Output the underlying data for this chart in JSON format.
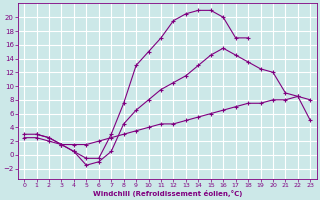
{
  "xlabel": "Windchill (Refroidissement éolien,°C)",
  "bg_color": "#cce8e8",
  "grid_color": "#ffffff",
  "line_color": "#800080",
  "xlim": [
    -0.5,
    23.5
  ],
  "ylim": [
    -3.5,
    22
  ],
  "xticks": [
    0,
    1,
    2,
    3,
    4,
    5,
    6,
    7,
    8,
    9,
    10,
    11,
    12,
    13,
    14,
    15,
    16,
    17,
    18,
    19,
    20,
    21,
    22,
    23
  ],
  "yticks": [
    -2,
    0,
    2,
    4,
    6,
    8,
    10,
    12,
    14,
    16,
    18,
    20
  ],
  "line1_x": [
    1,
    2,
    3,
    4,
    5,
    6,
    7,
    8,
    9,
    10,
    11,
    12,
    13,
    14,
    15,
    16,
    17,
    18
  ],
  "line1_y": [
    3,
    2.5,
    1.5,
    0.5,
    -0.5,
    -0.5,
    3.0,
    7.5,
    13.0,
    15.0,
    17.0,
    19.5,
    20.5,
    21.0,
    21.0,
    20.0,
    17.0,
    17.0
  ],
  "line2_x": [
    0,
    1,
    2,
    3,
    4,
    5,
    6,
    7,
    8,
    9,
    10,
    11,
    12,
    13,
    14,
    15,
    16,
    17,
    18,
    19,
    20,
    21,
    22,
    23
  ],
  "line2_y": [
    3,
    3,
    2.5,
    1.5,
    0.5,
    -1.5,
    -1.0,
    0.5,
    4.5,
    6.5,
    8.0,
    9.5,
    10.5,
    11.5,
    13.0,
    14.5,
    15.5,
    14.5,
    13.5,
    12.5,
    12.0,
    9.0,
    8.5,
    8.0
  ],
  "line3_x": [
    0,
    1,
    2,
    3,
    4,
    5,
    6,
    7,
    8,
    9,
    10,
    11,
    12,
    13,
    14,
    15,
    16,
    17,
    18,
    19,
    20,
    21,
    22,
    23
  ],
  "line3_y": [
    2.5,
    2.5,
    2.0,
    1.5,
    1.5,
    1.5,
    2.0,
    2.5,
    3.0,
    3.5,
    4.0,
    4.5,
    4.5,
    5.0,
    5.5,
    6.0,
    6.5,
    7.0,
    7.5,
    7.5,
    8.0,
    8.0,
    8.5,
    5.0
  ],
  "marker": "+"
}
